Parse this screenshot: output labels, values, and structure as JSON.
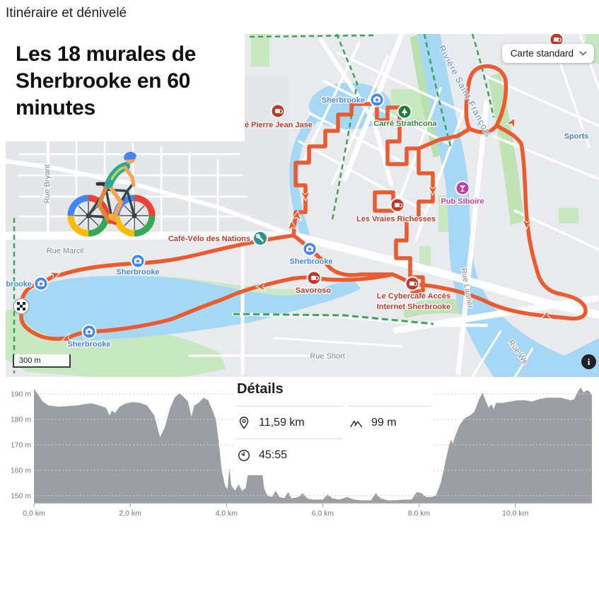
{
  "page": {
    "header": "Itinéraire et dénivelé"
  },
  "colors": {
    "route_orange": "#EA5B2F",
    "water_blue": "#A6D8F5",
    "park_green": "#C7E8C0",
    "chart_gray": "#9B9FA3",
    "poi_blue": "#4285F4",
    "poi_red": "#BE3B2C",
    "poi_green": "#3E7E41",
    "poi_magenta": "#C03FA8",
    "poi_teal": "#2E9388"
  },
  "map": {
    "title": "Les 18 murales de Sherbrooke en 60 minutes",
    "map_type_selector": "Carte standard",
    "scale_label": "300 m",
    "info_label": "i",
    "water_label": "Rivière Saint-François",
    "places": [
      {
        "label": "Café Pierre Jean Jase",
        "icon": "coffee-cup-icon"
      },
      {
        "label": "Sherbrooke",
        "icon": "camera-icon"
      },
      {
        "label": "brooke",
        "icon": "camera-icon"
      },
      {
        "label": "Carré Strathcona",
        "icon": "tree-icon"
      },
      {
        "label": "Pub Siboire",
        "icon": "cocktail-icon"
      },
      {
        "label": "Les Vraies Richesses",
        "icon": "coffee-cup-icon"
      },
      {
        "label": "Café-Vélo des Nations",
        "icon": "wrench-icon"
      },
      {
        "label": "Savoroso",
        "icon": "coffee-cup-icon"
      },
      {
        "label": "Le Cybercafé Accès",
        "label2": "Internet Sherbrooke",
        "icon": "coffee-cup-icon"
      },
      {
        "label": "Sports",
        "icon": "none"
      }
    ],
    "streets": [
      "Rue Bryant",
      "Rue Marcil",
      "Rue Short",
      "Rue Laurier",
      "Rue We"
    ]
  },
  "details": {
    "title": "Détails",
    "distance": "11,59 km",
    "elevation_gain": "99 m",
    "duration": "45:55"
  },
  "chart_data": {
    "type": "area",
    "title": "",
    "xlabel": "",
    "ylabel": "",
    "xlim": [
      0,
      11.59
    ],
    "ylim": [
      147,
      194
    ],
    "grid": "horizontal-dashed",
    "yticks": [
      {
        "v": 150,
        "label": "150 m"
      },
      {
        "v": 160,
        "label": "160 m"
      },
      {
        "v": 170,
        "label": "170 m"
      },
      {
        "v": 180,
        "label": "180 m"
      },
      {
        "v": 190,
        "label": "190 m"
      }
    ],
    "xticks": [
      {
        "v": 0,
        "label": "0,0 km"
      },
      {
        "v": 2,
        "label": "2,0 km"
      },
      {
        "v": 4,
        "label": "4,0 km"
      },
      {
        "v": 6,
        "label": "6,0 km"
      },
      {
        "v": 8,
        "label": "8,0 km"
      },
      {
        "v": 10,
        "label": "10,0 km"
      }
    ],
    "series": [
      {
        "name": "elevation_m_vs_km",
        "points": [
          [
            0,
            192
          ],
          [
            0.08,
            190
          ],
          [
            0.18,
            187
          ],
          [
            0.3,
            185.5
          ],
          [
            0.5,
            185
          ],
          [
            0.7,
            185.2
          ],
          [
            0.9,
            185.5
          ],
          [
            1.05,
            186
          ],
          [
            1.2,
            186.3
          ],
          [
            1.35,
            185.5
          ],
          [
            1.5,
            184.5
          ],
          [
            1.57,
            181.5
          ],
          [
            1.62,
            183.5
          ],
          [
            1.68,
            182.5
          ],
          [
            1.78,
            185
          ],
          [
            1.9,
            186.2
          ],
          [
            2.05,
            186.8
          ],
          [
            2.2,
            186.5
          ],
          [
            2.35,
            185.5
          ],
          [
            2.5,
            181.5
          ],
          [
            2.62,
            173
          ],
          [
            2.72,
            177
          ],
          [
            2.82,
            184
          ],
          [
            2.92,
            188.5
          ],
          [
            3.02,
            190.3
          ],
          [
            3.1,
            189
          ],
          [
            3.2,
            187
          ],
          [
            3.27,
            181
          ],
          [
            3.33,
            185.5
          ],
          [
            3.42,
            186.5
          ],
          [
            3.52,
            188.5
          ],
          [
            3.62,
            187.5
          ],
          [
            3.7,
            184
          ],
          [
            3.78,
            180
          ],
          [
            3.84,
            171
          ],
          [
            3.9,
            160
          ],
          [
            3.97,
            154
          ],
          [
            4.02,
            152.5
          ],
          [
            4.06,
            161
          ],
          [
            4.1,
            154
          ],
          [
            4.18,
            152
          ],
          [
            4.25,
            154.5
          ],
          [
            4.32,
            152
          ],
          [
            4.4,
            153
          ],
          [
            4.45,
            159.5
          ],
          [
            4.55,
            160
          ],
          [
            4.68,
            160
          ],
          [
            4.74,
            159.5
          ],
          [
            4.78,
            153
          ],
          [
            4.85,
            150
          ],
          [
            4.95,
            149.5
          ],
          [
            5.02,
            152
          ],
          [
            5.1,
            149.5
          ],
          [
            5.2,
            149
          ],
          [
            5.28,
            151.5
          ],
          [
            5.35,
            149
          ],
          [
            5.5,
            149.5
          ],
          [
            5.58,
            151
          ],
          [
            5.68,
            149
          ],
          [
            5.8,
            148.5
          ],
          [
            6.0,
            148.5
          ],
          [
            6.1,
            150.5
          ],
          [
            6.2,
            149
          ],
          [
            6.35,
            148.5
          ],
          [
            6.5,
            149.5
          ],
          [
            6.65,
            148.5
          ],
          [
            6.8,
            148.2
          ],
          [
            7.0,
            148.2
          ],
          [
            7.1,
            151
          ],
          [
            7.2,
            149
          ],
          [
            7.35,
            148.2
          ],
          [
            7.5,
            148.2
          ],
          [
            7.7,
            148.5
          ],
          [
            7.85,
            148.5
          ],
          [
            7.95,
            151.5
          ],
          [
            8.05,
            151
          ],
          [
            8.15,
            149.5
          ],
          [
            8.25,
            149.5
          ],
          [
            8.35,
            150
          ],
          [
            8.45,
            155
          ],
          [
            8.52,
            161
          ],
          [
            8.6,
            168
          ],
          [
            8.66,
            172
          ],
          [
            8.7,
            170.5
          ],
          [
            8.76,
            174
          ],
          [
            8.85,
            178
          ],
          [
            8.95,
            180.5
          ],
          [
            9.05,
            181.5
          ],
          [
            9.15,
            183
          ],
          [
            9.25,
            188
          ],
          [
            9.32,
            190.5
          ],
          [
            9.4,
            186.5
          ],
          [
            9.45,
            184.5
          ],
          [
            9.5,
            186
          ],
          [
            9.55,
            184
          ],
          [
            9.6,
            186.5
          ],
          [
            9.75,
            186.5
          ],
          [
            9.9,
            187
          ],
          [
            10.05,
            187.5
          ],
          [
            10.2,
            187.5
          ],
          [
            10.35,
            187
          ],
          [
            10.5,
            188
          ],
          [
            10.65,
            188.5
          ],
          [
            10.8,
            188.5
          ],
          [
            10.95,
            188.5
          ],
          [
            11.05,
            188
          ],
          [
            11.15,
            187.5
          ],
          [
            11.22,
            187.8
          ],
          [
            11.3,
            191
          ],
          [
            11.36,
            192.5
          ],
          [
            11.42,
            190.5
          ],
          [
            11.48,
            191.5
          ],
          [
            11.54,
            191
          ],
          [
            11.59,
            189.5
          ]
        ]
      }
    ]
  }
}
